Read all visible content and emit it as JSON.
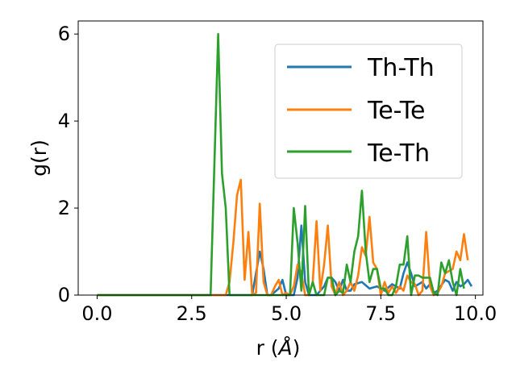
{
  "chart_data": {
    "type": "line",
    "xlabel_main": "r (",
    "xlabel_unit": "Å",
    "xlabel_close": ")",
    "ylabel": "g(r)",
    "xlim": [
      -0.5,
      10.2
    ],
    "ylim": [
      0,
      6.3
    ],
    "xticks": [
      0.0,
      2.5,
      5.0,
      7.5,
      10.0
    ],
    "xtick_labels": [
      "0.0",
      "2.5",
      "5.0",
      "7.5",
      "10.0"
    ],
    "yticks": [
      0,
      2,
      4,
      6
    ],
    "ytick_labels": [
      "0",
      "2",
      "4",
      "6"
    ],
    "grid": false,
    "legend_position": "top-right",
    "series": [
      {
        "name": "Th-Th",
        "color": "#1f77b4",
        "points": [
          [
            0.0,
            0
          ],
          [
            3.0,
            0
          ],
          [
            4.0,
            0
          ],
          [
            4.1,
            0
          ],
          [
            4.2,
            0.5
          ],
          [
            4.3,
            1.0
          ],
          [
            4.4,
            0.6
          ],
          [
            4.5,
            0
          ],
          [
            4.6,
            0
          ],
          [
            4.8,
            0.15
          ],
          [
            4.9,
            0.35
          ],
          [
            5.0,
            0
          ],
          [
            5.2,
            0
          ],
          [
            5.3,
            0.4
          ],
          [
            5.4,
            1.6
          ],
          [
            5.5,
            0.3
          ],
          [
            5.6,
            0
          ],
          [
            5.8,
            0
          ],
          [
            6.0,
            0.2
          ],
          [
            6.1,
            0.4
          ],
          [
            6.2,
            0.4
          ],
          [
            6.3,
            0.3
          ],
          [
            6.4,
            0.1
          ],
          [
            6.5,
            0.35
          ],
          [
            6.6,
            0.1
          ],
          [
            6.7,
            0.1
          ],
          [
            6.8,
            0.25
          ],
          [
            7.0,
            0.3
          ],
          [
            7.2,
            0.15
          ],
          [
            7.4,
            0.2
          ],
          [
            7.6,
            0.1
          ],
          [
            7.8,
            0.25
          ],
          [
            8.0,
            0.15
          ],
          [
            8.1,
            0.5
          ],
          [
            8.2,
            0.75
          ],
          [
            8.3,
            0.5
          ],
          [
            8.4,
            0.2
          ],
          [
            8.6,
            0.3
          ],
          [
            8.7,
            0.15
          ],
          [
            8.8,
            0.25
          ],
          [
            8.9,
            0.05
          ],
          [
            9.0,
            0.1
          ],
          [
            9.2,
            0.35
          ],
          [
            9.3,
            0.3
          ],
          [
            9.4,
            0.1
          ],
          [
            9.5,
            0.3
          ],
          [
            9.6,
            0.2
          ],
          [
            9.7,
            0.25
          ],
          [
            9.8,
            0.35
          ],
          [
            9.9,
            0.2
          ]
        ]
      },
      {
        "name": "Te-Te",
        "color": "#ff7f0e",
        "points": [
          [
            0.0,
            0
          ],
          [
            3.4,
            0
          ],
          [
            3.5,
            0.3
          ],
          [
            3.6,
            1.2
          ],
          [
            3.7,
            2.3
          ],
          [
            3.8,
            2.65
          ],
          [
            3.9,
            0.35
          ],
          [
            4.0,
            1.45
          ],
          [
            4.1,
            0
          ],
          [
            4.2,
            0.05
          ],
          [
            4.3,
            2.1
          ],
          [
            4.4,
            0.3
          ],
          [
            4.5,
            0
          ],
          [
            4.6,
            0
          ],
          [
            4.7,
            0.2
          ],
          [
            4.8,
            0.35
          ],
          [
            4.9,
            0
          ],
          [
            5.0,
            0.05
          ],
          [
            5.1,
            0
          ],
          [
            5.2,
            0.2
          ],
          [
            5.3,
            0.7
          ],
          [
            5.4,
            0.5
          ],
          [
            5.5,
            0
          ],
          [
            5.6,
            0
          ],
          [
            5.7,
            0.3
          ],
          [
            5.8,
            1.7
          ],
          [
            5.9,
            0.1
          ],
          [
            6.0,
            0.7
          ],
          [
            6.1,
            1.6
          ],
          [
            6.2,
            0.2
          ],
          [
            6.3,
            0
          ],
          [
            6.4,
            0.3
          ],
          [
            6.5,
            0
          ],
          [
            6.6,
            0.1
          ],
          [
            6.7,
            0.3
          ],
          [
            6.8,
            0.1
          ],
          [
            6.9,
            0.45
          ],
          [
            7.0,
            1.1
          ],
          [
            7.1,
            0.9
          ],
          [
            7.2,
            1.8
          ],
          [
            7.3,
            0.75
          ],
          [
            7.4,
            0.6
          ],
          [
            7.5,
            0
          ],
          [
            7.6,
            0.3
          ],
          [
            7.7,
            0.05
          ],
          [
            7.8,
            0.2
          ],
          [
            7.9,
            0.05
          ],
          [
            8.0,
            0.2
          ],
          [
            8.1,
            0.1
          ],
          [
            8.2,
            0.45
          ],
          [
            8.3,
            0.3
          ],
          [
            8.4,
            0.25
          ],
          [
            8.5,
            0
          ],
          [
            8.6,
            0.1
          ],
          [
            8.7,
            1.45
          ],
          [
            8.8,
            0.2
          ],
          [
            8.9,
            0
          ],
          [
            9.0,
            0.05
          ],
          [
            9.1,
            0.2
          ],
          [
            9.2,
            0.5
          ],
          [
            9.3,
            0.55
          ],
          [
            9.4,
            0.6
          ],
          [
            9.5,
            1.0
          ],
          [
            9.6,
            0.8
          ],
          [
            9.7,
            1.4
          ],
          [
            9.8,
            0.8
          ]
        ]
      },
      {
        "name": "Te-Th",
        "color": "#2ca02c",
        "points": [
          [
            0.0,
            0
          ],
          [
            3.0,
            0
          ],
          [
            3.1,
            3.0
          ],
          [
            3.2,
            6.0
          ],
          [
            3.3,
            2.8
          ],
          [
            3.4,
            2.0
          ],
          [
            3.5,
            0
          ],
          [
            5.1,
            0
          ],
          [
            5.2,
            2.0
          ],
          [
            5.3,
            1.2
          ],
          [
            5.4,
            0.1
          ],
          [
            5.5,
            2.05
          ],
          [
            5.6,
            0
          ],
          [
            5.7,
            0.3
          ],
          [
            5.8,
            0
          ],
          [
            6.0,
            0
          ],
          [
            6.1,
            0.4
          ],
          [
            6.2,
            0.4
          ],
          [
            6.3,
            0
          ],
          [
            6.4,
            0.1
          ],
          [
            6.5,
            0.05
          ],
          [
            6.6,
            0.7
          ],
          [
            6.7,
            0.3
          ],
          [
            6.8,
            1.0
          ],
          [
            6.9,
            1.35
          ],
          [
            7.0,
            2.4
          ],
          [
            7.1,
            1.0
          ],
          [
            7.2,
            0.3
          ],
          [
            7.3,
            0.6
          ],
          [
            7.4,
            0.6
          ],
          [
            7.5,
            0.15
          ],
          [
            7.6,
            0.15
          ],
          [
            7.7,
            0
          ],
          [
            7.8,
            0
          ],
          [
            7.9,
            0.2
          ],
          [
            8.0,
            0.7
          ],
          [
            8.1,
            0.7
          ],
          [
            8.2,
            1.35
          ],
          [
            8.3,
            0
          ],
          [
            8.4,
            0.45
          ],
          [
            8.5,
            0.45
          ],
          [
            8.6,
            0.4
          ],
          [
            8.7,
            0.4
          ],
          [
            8.8,
            0.4
          ],
          [
            8.9,
            0.05
          ],
          [
            9.0,
            0
          ],
          [
            9.1,
            0.75
          ],
          [
            9.2,
            0.5
          ],
          [
            9.3,
            0.8
          ],
          [
            9.4,
            0.3
          ],
          [
            9.5,
            0
          ],
          [
            9.6,
            0.6
          ],
          [
            9.7,
            0.15
          ]
        ]
      }
    ]
  }
}
